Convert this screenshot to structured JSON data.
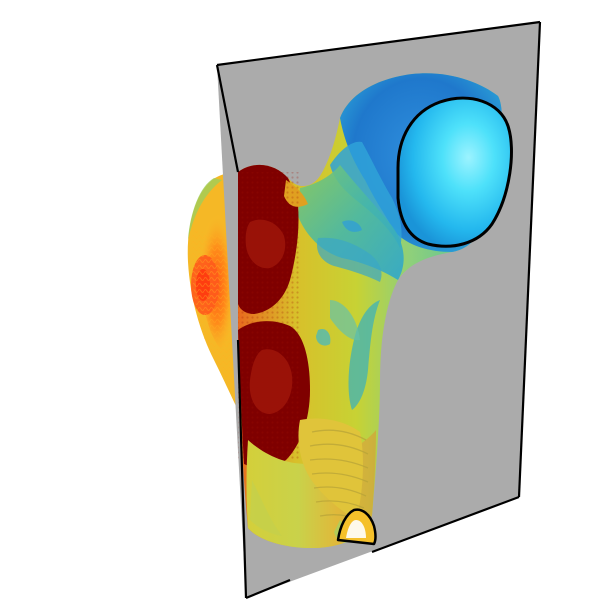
{
  "scene": {
    "background_color": "#ffffff",
    "plane_color": "#ababab",
    "plane_edge_color": "#000000",
    "contour_color": "#000000",
    "colormap": "jet",
    "colormap_stops": [
      "#00007f",
      "#0000ff",
      "#007fff",
      "#00ffff",
      "#7fff7f",
      "#ffff00",
      "#ff7f00",
      "#ff0000",
      "#7f0000"
    ],
    "objects": [
      "femur-surface",
      "cutting-plane",
      "femoral-head-contour",
      "shaft-cross-section-contour"
    ]
  }
}
